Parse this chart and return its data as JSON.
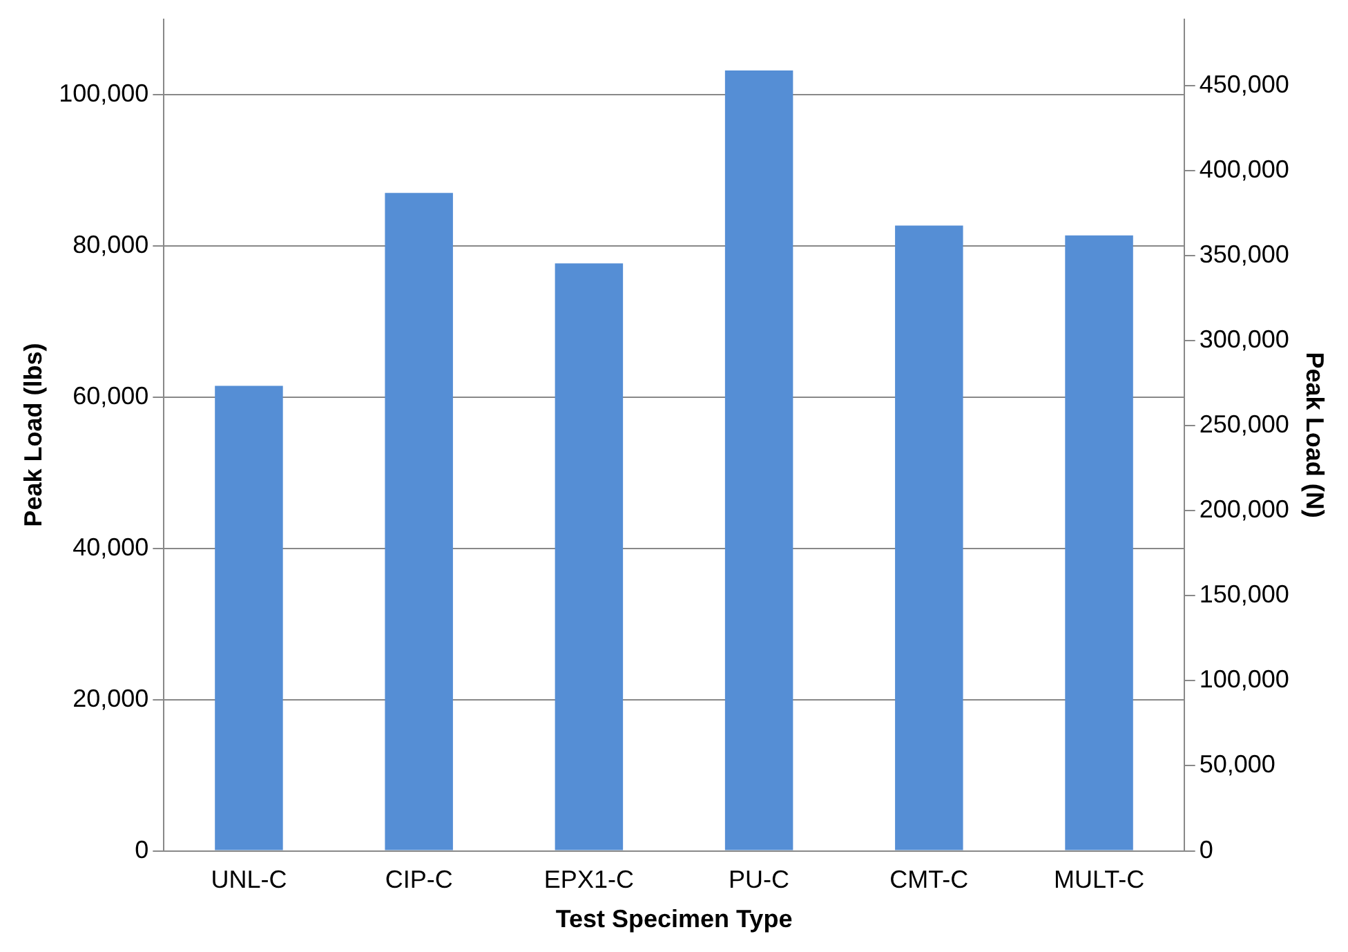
{
  "chart_data": {
    "type": "bar",
    "xlabel": "Test Specimen Type",
    "ylabel": "Peak Load (lbs)",
    "y2label": "Peak Load (N)",
    "categories": [
      "UNL-C",
      "CIP-C",
      "EPX1-C",
      "PU-C",
      "CMT-C",
      "MULT-C"
    ],
    "series": [
      {
        "color": "#558ed5",
        "values": [
          61500,
          87000,
          77700,
          103200,
          82700,
          81400
        ]
      }
    ],
    "ylim": [
      0,
      110000
    ],
    "yticks": [
      {
        "value": 0,
        "label": "0"
      },
      {
        "value": 20000,
        "label": "20,000"
      },
      {
        "value": 40000,
        "label": "40,000"
      },
      {
        "value": 60000,
        "label": "60,000"
      },
      {
        "value": 80000,
        "label": "80,000"
      },
      {
        "value": 100000,
        "label": "100,000"
      }
    ],
    "y2lim": [
      0,
      489000
    ],
    "y2ticks": [
      {
        "value": 0,
        "label": "0"
      },
      {
        "value": 50000,
        "label": "50,000"
      },
      {
        "value": 100000,
        "label": "100,000"
      },
      {
        "value": 150000,
        "label": "150,000"
      },
      {
        "value": 200000,
        "label": "200,000"
      },
      {
        "value": 250000,
        "label": "250,000"
      },
      {
        "value": 300000,
        "label": "300,000"
      },
      {
        "value": 350000,
        "label": "350,000"
      },
      {
        "value": 400000,
        "label": "400,000"
      },
      {
        "value": 450000,
        "label": "450,000"
      }
    ],
    "grid": "y",
    "legend": false
  }
}
